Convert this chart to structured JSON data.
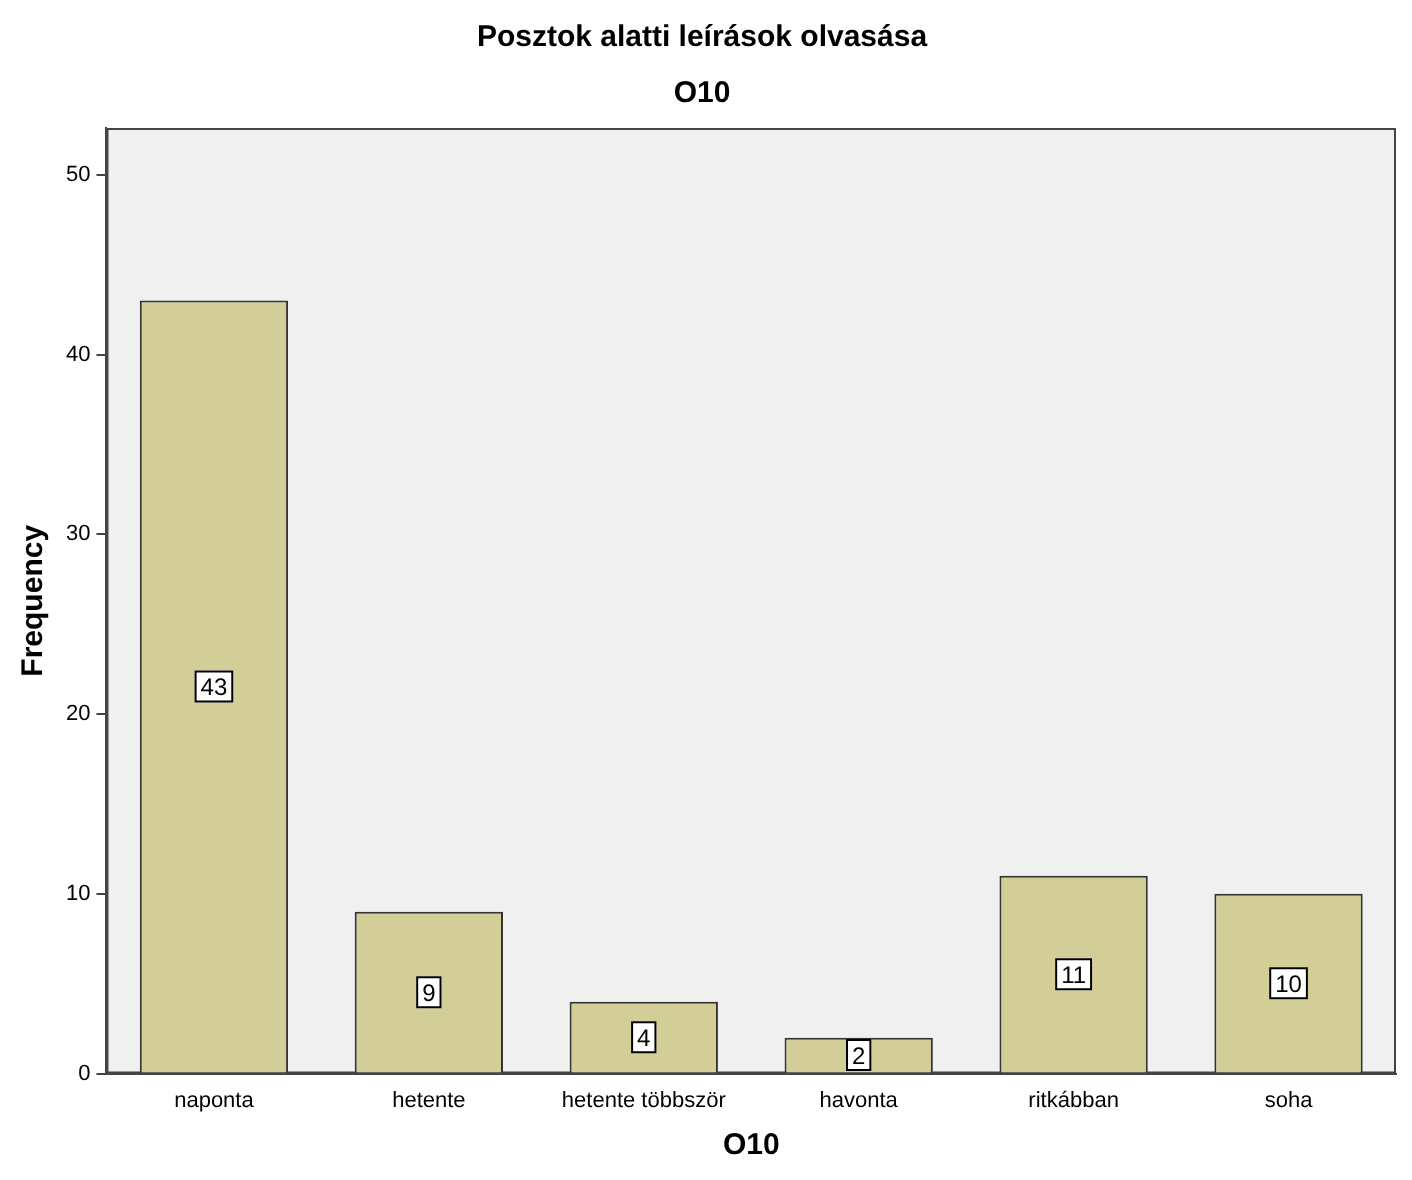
{
  "chart_data": {
    "type": "bar",
    "title": "Posztok alatti leírások olvasása",
    "subtitle": "O10",
    "xlabel": "O10",
    "ylabel": "Frequency",
    "categories": [
      "naponta",
      "hetente",
      "hetente többször",
      "havonta",
      "ritkábban",
      "soha"
    ],
    "values": [
      43,
      9,
      4,
      2,
      11,
      10
    ],
    "color": "#d3ce98",
    "ylim": [
      0,
      52.6
    ],
    "yticks": [
      0,
      10,
      20,
      30,
      40,
      50
    ],
    "grid": false,
    "legend": false,
    "data_labels": true
  }
}
